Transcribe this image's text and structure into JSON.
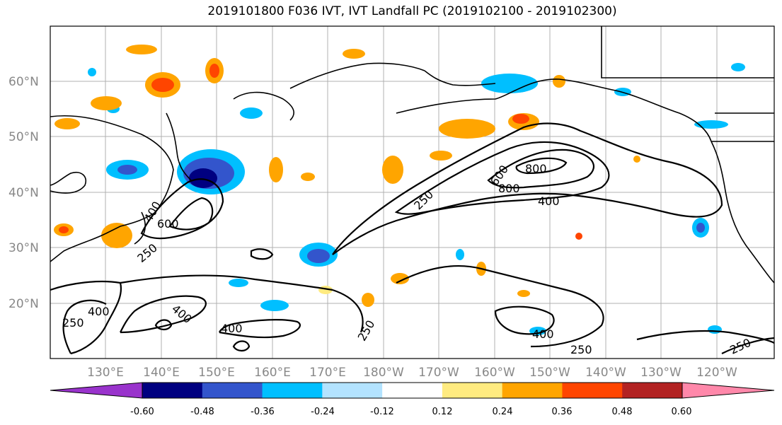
{
  "title": "2019101800 F036 IVT, IVT Landfall PC (2019102100 - 2019102300)",
  "lat_labels": [
    "60°N",
    "50°N",
    "40°N",
    "30°N",
    "20°N"
  ],
  "lon_labels": [
    "130°E",
    "140°E",
    "150°E",
    "160°E",
    "170°E",
    "180°W",
    "170°W",
    "160°W",
    "150°W",
    "140°W",
    "130°W",
    "120°W"
  ],
  "colorbar": {
    "colors": [
      "#9933cc",
      "#000080",
      "#3355cc",
      "#00bfff",
      "#b3e3ff",
      "#ffffff",
      "#ffeb80",
      "#ffa500",
      "#ff4500",
      "#b22222",
      "#ff88aa"
    ],
    "tick_labels": [
      "-0.60",
      "-0.48",
      "-0.36",
      "-0.24",
      "-0.12",
      "0.12",
      "0.24",
      "0.36",
      "0.48",
      "0.60"
    ]
  },
  "contour_labels": [
    "250",
    "400",
    "600",
    "800",
    "250",
    "400",
    "600",
    "800",
    "400",
    "250",
    "400",
    "400",
    "250",
    "400",
    "250",
    "250"
  ]
}
